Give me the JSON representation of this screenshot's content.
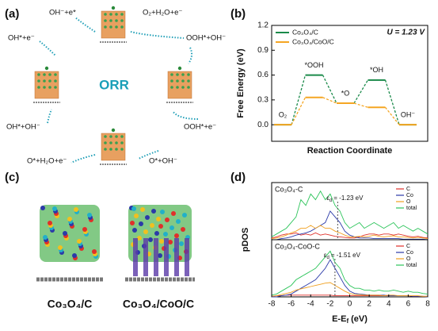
{
  "panel_labels": [
    "(a)",
    "(b)",
    "(c)",
    "(d)"
  ],
  "reaction_cycle": {
    "center": "ORR",
    "steps": [
      "OH⁻+e*",
      "O₂+H₂O+e⁻",
      "OOH*+OH⁻",
      "OOH*+e⁻",
      "O*+OH⁻",
      "O*+H₂O+e⁻",
      "OH*+OH⁻",
      "OH*+e⁻"
    ]
  },
  "structures": {
    "labels": [
      "Co₃O₄/C",
      "Co₃O₄/CoO/C"
    ]
  },
  "chart_data": [
    {
      "type": "line",
      "ylabel": "Free Energy (eV)",
      "xlabel": "Reaction Coordinate",
      "annotation": "U = 1.23 V",
      "categories": [
        "O₂",
        "*OOH",
        "*O",
        "*OH",
        "OH⁻"
      ],
      "series": [
        {
          "name": "Co₃O₄/C",
          "color": "#1a8a4a",
          "values": [
            0,
            0.6,
            0.26,
            0.54,
            0
          ]
        },
        {
          "name": "Co₃O₄/CoO/C",
          "color": "#f5a623",
          "values": [
            0,
            0.33,
            0.26,
            0.21,
            0
          ]
        }
      ],
      "ylim": [
        -0.2,
        1.2
      ],
      "yticks": [
        {
          "value": 0,
          "label": "0.0"
        },
        0.3,
        0.6,
        0.9,
        1.2
      ],
      "legend": "upper left"
    },
    {
      "type": "line",
      "ylabel": "pDOS",
      "xlabel": "E-E",
      "xlabel_sub": "f",
      "xlabel_unit": "(eV)",
      "xlim": [
        -8,
        8
      ],
      "xticks": [
        -8,
        -6,
        -4,
        -2,
        0,
        2,
        4,
        6,
        8
      ],
      "ylim": [
        0,
        10
      ],
      "x": [
        -8,
        -7.5,
        -7,
        -6.5,
        -6,
        -5.5,
        -5,
        -4.5,
        -4,
        -3.5,
        -3,
        -2.5,
        -2,
        -1.5,
        -1,
        -0.5,
        0,
        0.5,
        1,
        1.5,
        2,
        2.5,
        3,
        3.5,
        4,
        4.5,
        5,
        5.5,
        6,
        6.5,
        7,
        7.5,
        8
      ],
      "panels": [
        {
          "title": "Co₃O₄-C",
          "center_symbol": "ε",
          "center_sub": "d",
          "center_text": "= -1.23 eV",
          "center": -1.23,
          "series": [
            {
              "name": "C",
              "color": "#e0302a",
              "values": [
                0.3,
                0.5,
                0.8,
                1,
                1,
                1.2,
                0.8,
                1,
                0.8,
                1.2,
                0.8,
                1,
                0.8,
                0.6,
                0.5,
                0.4,
                0.3,
                0.3,
                0.5,
                0.8,
                1,
                1,
                0.8,
                1,
                1,
                0.8,
                1,
                0.8,
                0.6,
                0.5,
                0.6,
                0.4,
                0.3
              ]
            },
            {
              "name": "Co",
              "color": "#2b3aa8",
              "values": [
                0,
                0,
                0.2,
                0.3,
                0.5,
                0.8,
                1,
                1.2,
                1.5,
                2,
                2.5,
                3,
                5,
                4,
                3,
                1.5,
                0.8,
                0.5,
                0.3,
                0.3,
                0.3,
                0.2,
                0.2,
                0.2,
                0.2,
                0.2,
                0.2,
                0.1,
                0.1,
                0.1,
                0.1,
                0.1,
                0
              ]
            },
            {
              "name": "O",
              "color": "#f0a020",
              "values": [
                0.2,
                0.3,
                0.5,
                0.8,
                1.2,
                1.5,
                2,
                2,
                2.5,
                2,
                2.5,
                2,
                2,
                1.5,
                1.2,
                0.8,
                0.5,
                0.5,
                0.6,
                0.5,
                0.6,
                0.8,
                0.6,
                0.5,
                0.6,
                0.7,
                0.5,
                0.5,
                0.4,
                0.3,
                0.4,
                0.3,
                0.2
              ]
            },
            {
              "name": "total",
              "color": "#2cc45a",
              "values": [
                0.5,
                1,
                1.5,
                2,
                3,
                4,
                7,
                6,
                8,
                7,
                8.5,
                7,
                8,
                6,
                5,
                3,
                2,
                2.5,
                3,
                2,
                2.5,
                3,
                2.5,
                2,
                2.5,
                3,
                2,
                2.5,
                2,
                1.5,
                2,
                1.5,
                1
              ]
            }
          ]
        },
        {
          "title": "Co₃O₄-CoO-C",
          "center_symbol": "ε",
          "center_sub": "d",
          "center_text": "= -1.51 eV",
          "center": -1.51,
          "series": [
            {
              "name": "C",
              "color": "#e0302a",
              "values": [
                0.1,
                0.2,
                0.2,
                0.3,
                0.3,
                0.3,
                0.3,
                0.3,
                0.3,
                0.3,
                0.3,
                0.3,
                0.3,
                0.2,
                0.2,
                0.2,
                0.2,
                0.2,
                0.2,
                0.2,
                0.2,
                0.2,
                0.2,
                0.2,
                0.2,
                0.2,
                0.2,
                0.2,
                0.2,
                0.1,
                0.1,
                0.1,
                0.1
              ]
            },
            {
              "name": "Co",
              "color": "#2b3aa8",
              "values": [
                0,
                0,
                0.2,
                0.3,
                0.5,
                1,
                1.5,
                2,
                2.5,
                3,
                4,
                5,
                6.5,
                5,
                3.5,
                2,
                1,
                0.6,
                0.5,
                0.4,
                0.3,
                0.3,
                0.3,
                0.3,
                0.2,
                0.2,
                0.2,
                0.2,
                0.2,
                0.1,
                0.1,
                0.1,
                0
              ]
            },
            {
              "name": "O",
              "color": "#f0a020",
              "values": [
                0.1,
                0.2,
                0.4,
                0.6,
                0.8,
                1.2,
                1.4,
                1.6,
                1.8,
                2,
                2.2,
                2.4,
                2.5,
                2,
                1.5,
                1,
                0.6,
                0.4,
                0.4,
                0.3,
                0.3,
                0.3,
                0.3,
                0.2,
                0.3,
                0.3,
                0.2,
                0.2,
                0.2,
                0.2,
                0.2,
                0.1,
                0.1
              ]
            },
            {
              "name": "total",
              "color": "#2cc45a",
              "values": [
                0.3,
                0.5,
                1,
                1.5,
                2,
                3,
                3.5,
                4,
                4.5,
                5,
                6,
                7,
                8,
                6,
                5,
                3,
                2,
                1.5,
                1.5,
                1.2,
                1.2,
                1,
                1.2,
                1,
                1,
                1.2,
                1,
                0.8,
                1,
                0.8,
                0.8,
                0.6,
                0.5
              ]
            }
          ]
        }
      ]
    }
  ]
}
